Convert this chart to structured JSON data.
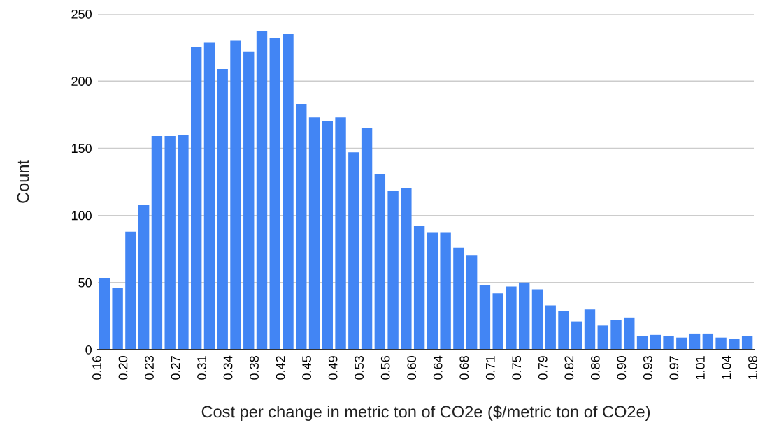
{
  "chart_data": {
    "type": "histogram",
    "xlabel": "Cost per change in metric ton of CO2e ($/metric ton of CO2e)",
    "ylabel": "Count",
    "bins": [
      0.16,
      0.1784,
      0.1968,
      0.2152,
      0.2336,
      0.252,
      0.2704,
      0.2888,
      0.3072,
      0.3256,
      0.344,
      0.3624,
      0.3808,
      0.3992,
      0.4176,
      0.436,
      0.4544,
      0.4728,
      0.4912,
      0.5096,
      0.528,
      0.5464,
      0.5648,
      0.5832,
      0.6016,
      0.62,
      0.6384,
      0.6568,
      0.6752,
      0.6936,
      0.712,
      0.7304,
      0.7488,
      0.7672,
      0.7856,
      0.804,
      0.8224,
      0.8408,
      0.8592,
      0.8776,
      0.896,
      0.9144,
      0.9328,
      0.9512,
      0.9696,
      0.988,
      1.0064,
      1.0248,
      1.0432,
      1.0616,
      1.08
    ],
    "values": [
      53,
      46,
      88,
      108,
      159,
      159,
      160,
      225,
      229,
      209,
      230,
      222,
      237,
      232,
      235,
      183,
      173,
      170,
      173,
      147,
      165,
      131,
      118,
      120,
      92,
      87,
      87,
      76,
      70,
      48,
      42,
      47,
      50,
      45,
      33,
      29,
      21,
      30,
      18,
      22,
      24,
      10,
      11,
      10,
      9,
      12,
      12,
      9,
      8,
      10
    ],
    "color": "#4285f4",
    "xlim": [
      0.16,
      1.08
    ],
    "xticks": [
      {
        "value": 0.16,
        "label": "0.16"
      },
      {
        "value": 0.1968,
        "label": "0.20"
      },
      {
        "value": 0.2336,
        "label": "0.23"
      },
      {
        "value": 0.2704,
        "label": "0.27"
      },
      {
        "value": 0.3072,
        "label": "0.31"
      },
      {
        "value": 0.344,
        "label": "0.34"
      },
      {
        "value": 0.3808,
        "label": "0.38"
      },
      {
        "value": 0.4176,
        "label": "0.42"
      },
      {
        "value": 0.4544,
        "label": "0.45"
      },
      {
        "value": 0.4912,
        "label": "0.49"
      },
      {
        "value": 0.528,
        "label": "0.53"
      },
      {
        "value": 0.5648,
        "label": "0.56"
      },
      {
        "value": 0.6016,
        "label": "0.60"
      },
      {
        "value": 0.6384,
        "label": "0.64"
      },
      {
        "value": 0.6752,
        "label": "0.68"
      },
      {
        "value": 0.712,
        "label": "0.71"
      },
      {
        "value": 0.7488,
        "label": "0.75"
      },
      {
        "value": 0.7856,
        "label": "0.79"
      },
      {
        "value": 0.8224,
        "label": "0.82"
      },
      {
        "value": 0.8592,
        "label": "0.86"
      },
      {
        "value": 0.896,
        "label": "0.90"
      },
      {
        "value": 0.9328,
        "label": "0.93"
      },
      {
        "value": 0.9696,
        "label": "0.97"
      },
      {
        "value": 1.0064,
        "label": "1.01"
      },
      {
        "value": 1.0432,
        "label": "1.04"
      },
      {
        "value": 1.08,
        "label": "1.08"
      }
    ],
    "ylim": [
      0,
      250
    ],
    "yticks": [
      0,
      50,
      100,
      150,
      200,
      250
    ],
    "grid": "y",
    "legend": false
  }
}
